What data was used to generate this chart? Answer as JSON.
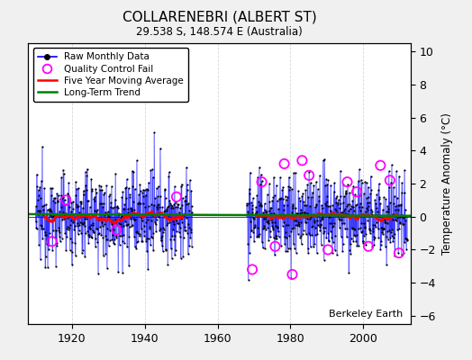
{
  "title": "COLLARENEBRI (ALBERT ST)",
  "subtitle": "29.538 S, 148.574 E (Australia)",
  "ylabel": "Temperature Anomaly (°C)",
  "credit": "Berkeley Earth",
  "xlim": [
    1908,
    2013
  ],
  "ylim": [
    -6.5,
    10.5
  ],
  "yticks": [
    -6,
    -4,
    -2,
    0,
    2,
    4,
    6,
    8,
    10
  ],
  "xticks": [
    1920,
    1940,
    1960,
    1980,
    2000
  ],
  "bg_color": "#f0f0f0",
  "plot_bg": "#ffffff",
  "grid_color": "#cccccc",
  "seed": 12345
}
